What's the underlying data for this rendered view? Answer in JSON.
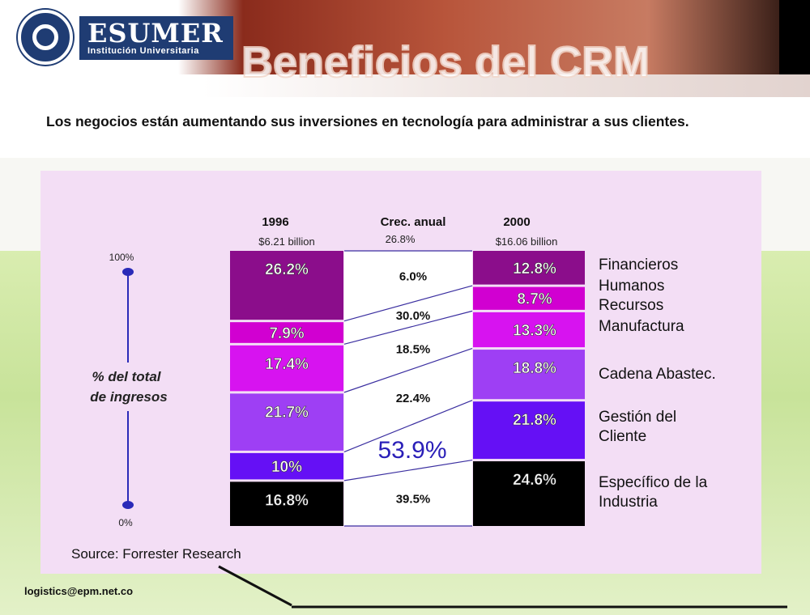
{
  "header": {
    "logo_name": "ESUMER",
    "logo_subtitle": "Institución Universitaria",
    "title": "Beneficios del CRM"
  },
  "intro": "Los negocios están aumentando sus inversiones en tecnología para administrar a sus clientes.",
  "footer": {
    "email": "logistics@epm.net.co"
  },
  "chart_data": {
    "type": "bar",
    "title": "",
    "stacked": true,
    "ylabel": "% del total de ingresos",
    "ylim": [
      0,
      100
    ],
    "y_ticks": [
      "100%",
      "0%"
    ],
    "columns": [
      {
        "year": "1996",
        "total": "$6.21 billion"
      },
      {
        "year": "2000",
        "total": "$16.06 billion"
      }
    ],
    "growth_header": "Crec. anual",
    "growth_total": "26.8%",
    "categories": [
      "Financieros",
      "Humanos Recursos",
      "Manufactura",
      "Cadena Abastec.",
      "Gestión del Cliente",
      "Específico de la Industria"
    ],
    "category_lines": [
      [
        "Financieros"
      ],
      [
        "Humanos",
        "Recursos"
      ],
      [
        "Manufactura"
      ],
      [
        "Cadena Abastec."
      ],
      [
        "Gestión del",
        "Cliente"
      ],
      [
        "Específico de la",
        "Industria"
      ]
    ],
    "series": [
      {
        "name": "1996",
        "values": [
          26.2,
          7.9,
          17.4,
          21.7,
          10,
          16.8
        ],
        "labels": [
          "26.2%",
          "7.9%",
          "17.4%",
          "21.7%",
          "10%",
          "16.8%"
        ]
      },
      {
        "name": "2000",
        "values": [
          12.8,
          8.7,
          13.3,
          18.8,
          21.8,
          24.6
        ],
        "labels": [
          "12.8%",
          "8.7%",
          "13.3%",
          "18.8%",
          "21.8%",
          "24.6%"
        ]
      }
    ],
    "growth": [
      "6.0%",
      "30.0%",
      "18.5%",
      "22.4%",
      "53.9%",
      "39.5%"
    ],
    "colors": [
      "#8b0d8b",
      "#d100d1",
      "#d713f0",
      "#9e3ff4",
      "#6510f5",
      "#000000"
    ],
    "source": "Source: Forrester Research"
  }
}
